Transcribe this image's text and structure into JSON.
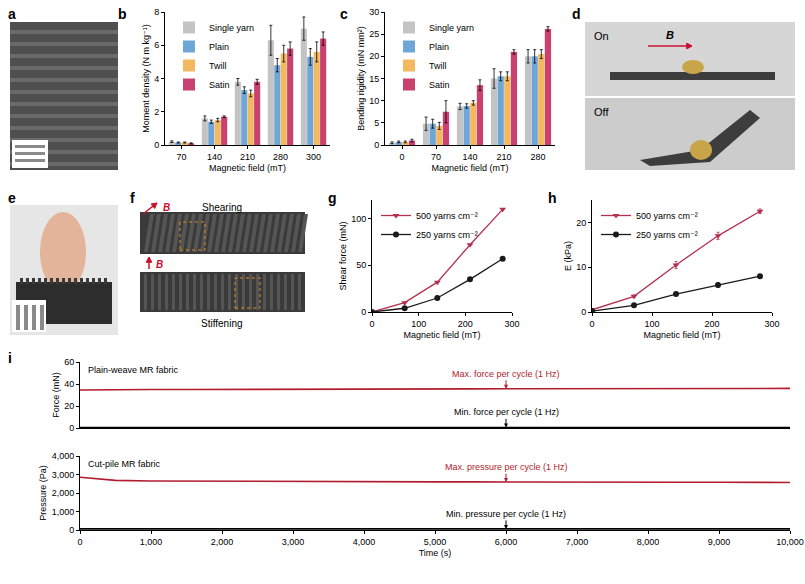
{
  "chart_data": [
    {
      "panel": "b",
      "type": "bar",
      "x_label": "Magnetic field (mT)",
      "y_label": "Moment density (N m kg⁻¹)",
      "categories": [
        "70",
        "140",
        "210",
        "280",
        "300"
      ],
      "ylim": [
        0,
        8
      ],
      "yticks": [
        0,
        2,
        4,
        6,
        8
      ],
      "grid": false,
      "legend": "upper left",
      "series": [
        {
          "name": "Single yarn",
          "color": "#c4c4c4",
          "values": [
            0.2,
            1.6,
            3.8,
            6.3,
            7.0
          ],
          "errors": [
            0.05,
            0.15,
            0.2,
            0.9,
            0.7
          ]
        },
        {
          "name": "Plain",
          "color": "#6ea6d7",
          "values": [
            0.15,
            1.4,
            3.3,
            4.8,
            5.3
          ],
          "errors": [
            0.03,
            0.1,
            0.2,
            0.4,
            0.5
          ]
        },
        {
          "name": "Twill",
          "color": "#f4b860",
          "values": [
            0.15,
            1.5,
            3.1,
            5.5,
            5.6
          ],
          "errors": [
            0.03,
            0.1,
            0.2,
            0.5,
            0.6
          ]
        },
        {
          "name": "Satin",
          "color": "#c9416f",
          "values": [
            0.1,
            1.7,
            3.8,
            5.8,
            6.4
          ],
          "errors": [
            0.03,
            0.05,
            0.15,
            0.4,
            0.4
          ]
        }
      ]
    },
    {
      "panel": "c",
      "type": "bar",
      "x_label": "Magnetic field (mT)",
      "y_label": "Bending rigidity (mN mm²)",
      "categories": [
        "0",
        "70",
        "140",
        "210",
        "280"
      ],
      "ylim": [
        0,
        30
      ],
      "yticks": [
        0,
        5,
        10,
        15,
        20,
        25,
        30
      ],
      "grid": false,
      "legend": "upper left",
      "series": [
        {
          "name": "Single yarn",
          "color": "#c4c4c4",
          "values": [
            0.5,
            4.8,
            8.7,
            15.0,
            20.0
          ],
          "errors": [
            0.2,
            1.5,
            0.7,
            2.2,
            1.5
          ]
        },
        {
          "name": "Plain",
          "color": "#6ea6d7",
          "values": [
            0.7,
            4.8,
            8.8,
            15.5,
            20.0
          ],
          "errors": [
            0.2,
            1.0,
            0.5,
            1.0,
            1.5
          ]
        },
        {
          "name": "Twill",
          "color": "#f4b860",
          "values": [
            0.7,
            4.3,
            9.5,
            15.5,
            20.5
          ],
          "errors": [
            0.2,
            0.8,
            0.5,
            1.0,
            1.0
          ]
        },
        {
          "name": "Satin",
          "color": "#c9416f",
          "values": [
            1.0,
            7.5,
            13.5,
            21.0,
            26.2
          ],
          "errors": [
            0.3,
            2.5,
            1.2,
            0.5,
            0.5
          ]
        }
      ]
    },
    {
      "panel": "g",
      "type": "line",
      "x_label": "Magnetic field (mT)",
      "y_label": "Shear force (mN)",
      "x": [
        0,
        70,
        140,
        210,
        280
      ],
      "xlim": [
        0,
        300
      ],
      "xticks": [
        0,
        100,
        200,
        300
      ],
      "ylim": [
        0,
        120
      ],
      "yticks": [
        0,
        50,
        100
      ],
      "grid": false,
      "legend": "upper left",
      "series": [
        {
          "name": "500 yarns cm⁻²",
          "color": "#b5304f",
          "marker": "triangle-down",
          "values": [
            0,
            10,
            32,
            72,
            110
          ]
        },
        {
          "name": "250 yarns cm⁻²",
          "color": "#1a1a1a",
          "marker": "circle",
          "values": [
            0,
            4,
            15,
            35,
            57
          ]
        }
      ]
    },
    {
      "panel": "h",
      "type": "line",
      "x_label": "Magnetic field (mT)",
      "y_label": "E (kPa)",
      "x": [
        0,
        70,
        140,
        210,
        280
      ],
      "xlim": [
        0,
        300
      ],
      "xticks": [
        0,
        100,
        200,
        300
      ],
      "ylim": [
        0,
        25
      ],
      "yticks": [
        0,
        10,
        20
      ],
      "grid": false,
      "legend": "upper left",
      "series": [
        {
          "name": "500 yarns cm⁻²",
          "color": "#b5304f",
          "marker": "triangle-down",
          "values": [
            0.5,
            3.5,
            10.5,
            17,
            22.5
          ],
          "errors": [
            0.1,
            0.3,
            0.8,
            0.8,
            0.5
          ]
        },
        {
          "name": "250 yarns cm⁻²",
          "color": "#1a1a1a",
          "marker": "circle",
          "values": [
            0.2,
            1.5,
            4,
            6,
            8
          ],
          "errors": [
            0.1,
            0.1,
            0.2,
            0.5,
            0.3
          ]
        }
      ]
    },
    {
      "panel": "i",
      "type": "line",
      "title": "Plain-weave MR fabric",
      "y_label": "Force (mN)",
      "x": [
        0,
        500,
        1000,
        1500,
        2000,
        2500,
        3000,
        3500,
        4000,
        4500,
        5000,
        5500,
        6000,
        6500,
        7000,
        7500,
        8000,
        8500,
        9000,
        9500,
        10000
      ],
      "xlim": [
        0,
        10000
      ],
      "ylim": [
        0,
        60
      ],
      "yticks": [
        0,
        20,
        40,
        60
      ],
      "tick_labels": "y",
      "grid": false,
      "series": [
        {
          "name": "Max. force per cycle (1 Hz)",
          "color": "#b11c2e",
          "values": [
            34.5,
            35,
            35,
            35,
            35,
            35.2,
            35.3,
            35.3,
            35.5,
            35.5,
            35.6,
            35.6,
            35.7,
            35.7,
            35.8,
            35.8,
            35.8,
            35.9,
            35.9,
            36,
            36
          ]
        },
        {
          "name": "Min. force per cycle (1 Hz)",
          "color": "#000000",
          "values": [
            0.5,
            0.5,
            0.5,
            0.5,
            0.5,
            0.5,
            0.5,
            0.5,
            0.5,
            0.5,
            0.5,
            0.5,
            0.5,
            0.5,
            0.5,
            0.5,
            0.5,
            0.5,
            0.5,
            0.5,
            0.5
          ]
        }
      ]
    },
    {
      "type": "line",
      "title": "Cut-pile MR fabric",
      "x_label": "Time (s)",
      "y_label": "Pressure (Pa)",
      "x": [
        0,
        500,
        1000,
        1500,
        2000,
        2500,
        3000,
        3500,
        4000,
        4500,
        5000,
        5500,
        6000,
        6500,
        7000,
        7500,
        8000,
        8500,
        9000,
        9500,
        10000
      ],
      "xlim": [
        0,
        10000
      ],
      "xticks": [
        0,
        {
          "value": 1000,
          "label": "1,000"
        },
        {
          "value": 2000,
          "label": "2,000"
        },
        {
          "value": 3000,
          "label": "3,000"
        },
        {
          "value": 4000,
          "label": "4,000"
        },
        {
          "value": 5000,
          "label": "5,000"
        },
        {
          "value": 6000,
          "label": "6,000"
        },
        {
          "value": 7000,
          "label": "7,000"
        },
        {
          "value": 8000,
          "label": "8,000"
        },
        {
          "value": 9000,
          "label": "9,000"
        },
        {
          "value": 10000,
          "label": "10,000"
        }
      ],
      "ylim": [
        0,
        4000
      ],
      "yticks": [
        0,
        {
          "value": 1000,
          "label": "1,000"
        },
        {
          "value": 2000,
          "label": "2,000"
        },
        {
          "value": 3000,
          "label": "3,000"
        },
        {
          "value": 4000,
          "label": "4,000"
        }
      ],
      "grid": false,
      "series": [
        {
          "name": "Max. pressure per cycle (1 Hz)",
          "color": "#b11c2e",
          "values": [
            2850,
            2680,
            2650,
            2640,
            2630,
            2620,
            2620,
            2610,
            2610,
            2600,
            2600,
            2600,
            2590,
            2590,
            2590,
            2580,
            2580,
            2580,
            2580,
            2570,
            2570
          ]
        },
        {
          "name": "Min. pressure per cycle (1 Hz)",
          "color": "#000000",
          "values": [
            60,
            60,
            60,
            60,
            60,
            60,
            60,
            60,
            60,
            60,
            60,
            60,
            60,
            60,
            60,
            60,
            60,
            60,
            60,
            60,
            60
          ]
        }
      ]
    }
  ],
  "photos": [
    {
      "panel": "a"
    },
    {
      "panel": "d",
      "texts": [
        "On",
        "B",
        "Off"
      ]
    },
    {
      "panel": "e"
    },
    {
      "panel": "f",
      "texts": [
        "Shearing",
        "B",
        "Stiffening",
        "B"
      ]
    }
  ]
}
